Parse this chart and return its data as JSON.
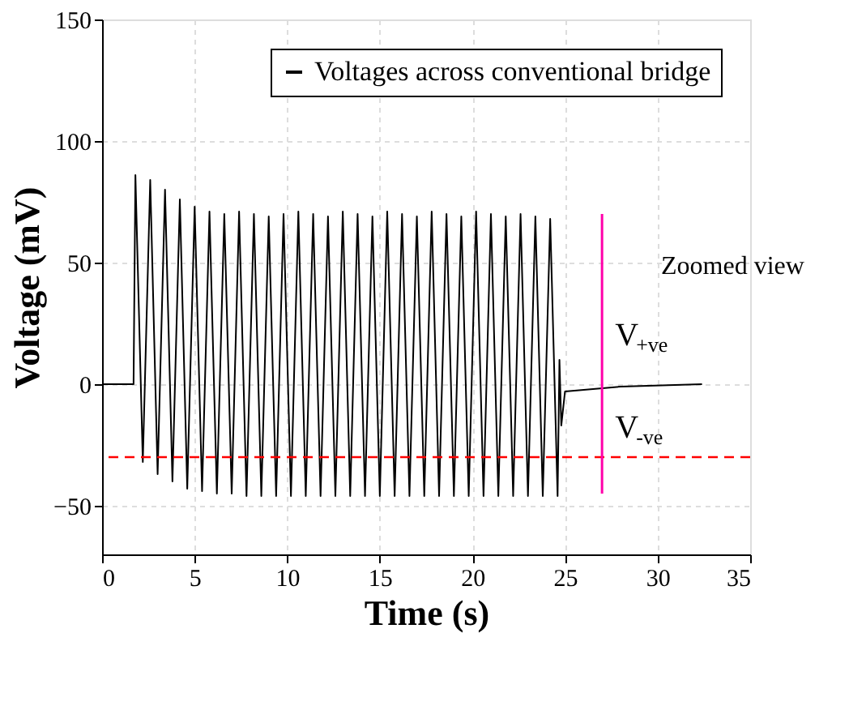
{
  "chart_data": {
    "type": "line",
    "xlabel": "Time (s)",
    "ylabel": "Voltage (mV)",
    "xlim": [
      0,
      35
    ],
    "xticks": [
      0,
      5,
      10,
      15,
      20,
      25,
      30,
      35
    ],
    "ylim": [
      -70,
      150
    ],
    "yticks": [
      -50,
      0,
      50,
      100,
      150
    ],
    "grid": true,
    "legend": "top right",
    "line_style": "solid",
    "series": [
      {
        "name": "Voltages across conventional bridge",
        "color": "#000000",
        "x": [
          0,
          1.7,
          1.8,
          2.2,
          2.6,
          3.0,
          3.4,
          3.8,
          4.2,
          4.6,
          5.0,
          5.4,
          5.8,
          6.2,
          6.6,
          7.0,
          7.4,
          7.8,
          8.2,
          8.6,
          9.0,
          9.4,
          9.8,
          10.2,
          10.6,
          11.0,
          11.4,
          11.8,
          12.2,
          12.6,
          13.0,
          13.4,
          13.8,
          14.2,
          14.6,
          15.0,
          15.4,
          15.8,
          16.2,
          16.6,
          17.0,
          17.4,
          17.8,
          18.2,
          18.6,
          19.0,
          19.4,
          19.8,
          20.2,
          20.6,
          21.0,
          21.4,
          21.8,
          22.2,
          22.6,
          23.0,
          23.4,
          23.8,
          24.2,
          24.6,
          24.7,
          24.8,
          25.0,
          28.0,
          32.4
        ],
        "values": [
          0,
          0,
          86,
          -32,
          84,
          -37,
          80,
          -40,
          76,
          -43,
          73,
          -44,
          71,
          -45,
          70,
          -45,
          71,
          -46,
          70,
          -46,
          69,
          -46,
          70,
          -46,
          71,
          -46,
          70,
          -46,
          69,
          -46,
          71,
          -46,
          70,
          -46,
          69,
          -46,
          71,
          -46,
          70,
          -46,
          69,
          -46,
          71,
          -46,
          70,
          -46,
          69,
          -46,
          71,
          -46,
          70,
          -46,
          69,
          -46,
          70,
          -46,
          69,
          -46,
          68,
          -46,
          10,
          -17,
          -3,
          -1,
          0
        ]
      }
    ],
    "ref_lines": [
      {
        "axis": "y",
        "value": -30,
        "color": "#ff0000",
        "line_style": "dashed"
      }
    ],
    "annotations": [
      "V$_{+ve}$",
      "V$_{-ve}$",
      "Zoomed view"
    ]
  }
}
